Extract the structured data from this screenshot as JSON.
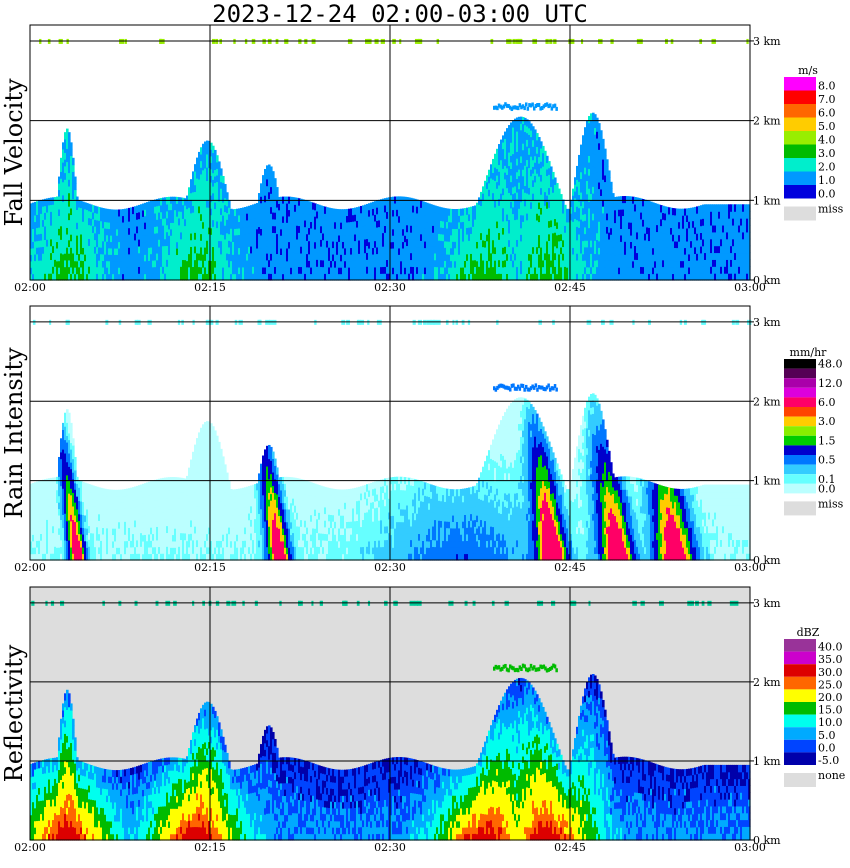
{
  "title": "2023-12-24   02:00-03:00 UTC",
  "chart_data": [
    {
      "type": "heatmap",
      "panel": "Fall Velocity",
      "ylabel": "Fall Velocity",
      "x_ticks": [
        "02:00",
        "02:15",
        "02:30",
        "02:45",
        "03:00"
      ],
      "y_ticks": [
        "0 km",
        "1 km",
        "2 km",
        "3 km"
      ],
      "ylim_km": [
        0,
        3.2
      ],
      "legend_unit": "m/s",
      "legend": [
        {
          "label": "8.0",
          "color": "#ff00ff"
        },
        {
          "label": "7.0",
          "color": "#ff0000"
        },
        {
          "label": "6.0",
          "color": "#ff6600"
        },
        {
          "label": "5.0",
          "color": "#ffcc00"
        },
        {
          "label": "4.0",
          "color": "#99ee00"
        },
        {
          "label": "3.0",
          "color": "#00bb00"
        },
        {
          "label": "2.0",
          "color": "#00eecc"
        },
        {
          "label": "1.0",
          "color": "#0099ff"
        },
        {
          "label": "0.0",
          "color": "#0000dd"
        }
      ],
      "missing_label": "miss",
      "missing_color": "#dddddd",
      "background": "#ffffff"
    },
    {
      "type": "heatmap",
      "panel": "Rain Intensity",
      "ylabel": "Rain Intensity",
      "x_ticks": [
        "02:00",
        "02:15",
        "02:30",
        "02:45",
        "03:00"
      ],
      "y_ticks": [
        "0 km",
        "1 km",
        "2 km",
        "3 km"
      ],
      "ylim_km": [
        0,
        3.2
      ],
      "legend_unit": "mm/hr",
      "legend": [
        {
          "label": "48.0",
          "color": "#000000"
        },
        {
          "label": "",
          "color": "#550055"
        },
        {
          "label": "12.0",
          "color": "#aa00aa"
        },
        {
          "label": "",
          "color": "#dd00dd"
        },
        {
          "label": "6.0",
          "color": "#ff0066"
        },
        {
          "label": "",
          "color": "#ff4400"
        },
        {
          "label": "3.0",
          "color": "#ffcc00"
        },
        {
          "label": "",
          "color": "#88ee00"
        },
        {
          "label": "1.5",
          "color": "#00cc00"
        },
        {
          "label": "",
          "color": "#0000cc"
        },
        {
          "label": "0.5",
          "color": "#0077ff"
        },
        {
          "label": "",
          "color": "#33ccff"
        },
        {
          "label": "0.1",
          "color": "#66ffff"
        },
        {
          "label": "0.0",
          "color": "#bbffff"
        }
      ],
      "missing_label": "miss",
      "missing_color": "#dddddd",
      "background": "#ffffff"
    },
    {
      "type": "heatmap",
      "panel": "Reflectivity",
      "ylabel": "Reflectivity",
      "x_ticks": [
        "02:00",
        "02:15",
        "02:30",
        "02:45",
        "03:00"
      ],
      "y_ticks": [
        "0 km",
        "1 km",
        "2 km",
        "3 km"
      ],
      "ylim_km": [
        0,
        3.2
      ],
      "legend_unit": "dBZ",
      "legend": [
        {
          "label": "40.0",
          "color": "#993399"
        },
        {
          "label": "35.0",
          "color": "#cc00cc"
        },
        {
          "label": "30.0",
          "color": "#dd0000"
        },
        {
          "label": "25.0",
          "color": "#ff6600"
        },
        {
          "label": "20.0",
          "color": "#ffff00"
        },
        {
          "label": "15.0",
          "color": "#00bb00"
        },
        {
          "label": "10.0",
          "color": "#00ffee"
        },
        {
          "label": "5.0",
          "color": "#00aaff"
        },
        {
          "label": "0.0",
          "color": "#0044ff"
        },
        {
          "label": "-5.0",
          "color": "#0000aa"
        }
      ],
      "missing_label": "none",
      "missing_color": "#dddddd",
      "background": "#dddddd"
    }
  ]
}
